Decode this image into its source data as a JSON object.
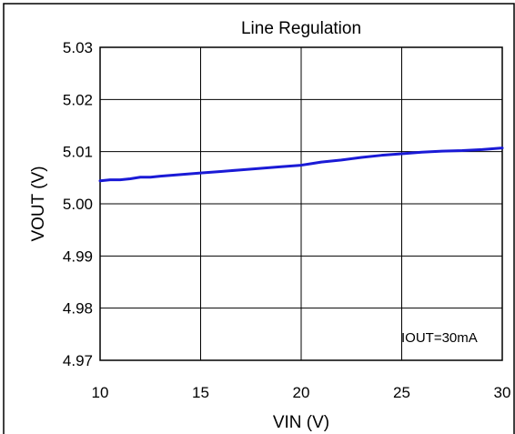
{
  "chart_data": {
    "type": "line",
    "title": "Line Regulation",
    "xlabel": "VIN (V)",
    "ylabel": "VOUT (V)",
    "xlim": [
      10,
      30
    ],
    "ylim": [
      4.97,
      5.03
    ],
    "xticks": [
      10,
      15,
      20,
      25,
      30
    ],
    "xtick_labels": [
      "10",
      "15",
      "20",
      "25",
      "30"
    ],
    "yticks": [
      4.97,
      4.98,
      4.99,
      5.0,
      5.01,
      5.02,
      5.03
    ],
    "ytick_labels": [
      "4.97",
      "4.98",
      "4.99",
      "5.00",
      "5.01",
      "5.02",
      "5.03"
    ],
    "grid": true,
    "annotation": "IOUT=30mA",
    "series": [
      {
        "color": "#1a1ad6",
        "x": [
          10,
          10.5,
          11,
          11.5,
          12,
          12.5,
          13,
          14,
          15,
          16,
          17,
          18,
          19,
          20,
          20.5,
          21,
          21.5,
          22,
          23,
          24,
          25,
          26,
          27,
          28,
          29,
          30
        ],
        "y": [
          5.0044,
          5.0046,
          5.0046,
          5.0048,
          5.0051,
          5.0051,
          5.0053,
          5.0056,
          5.0059,
          5.0062,
          5.0065,
          5.0068,
          5.0071,
          5.0074,
          5.0077,
          5.008,
          5.0082,
          5.0084,
          5.0089,
          5.0093,
          5.0096,
          5.0099,
          5.0101,
          5.0102,
          5.0104,
          5.0107
        ]
      }
    ]
  }
}
